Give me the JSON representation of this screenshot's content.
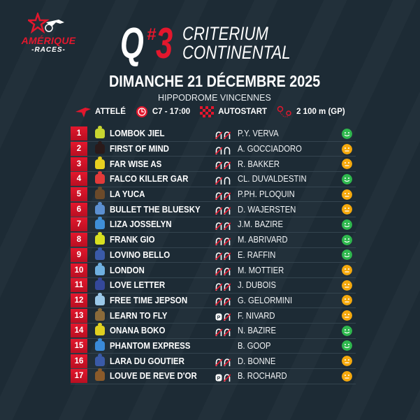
{
  "brand": {
    "line1": "AMÉRIQUE",
    "line2": "-RACES-",
    "accent": "#e3172d"
  },
  "race": {
    "q": "Q",
    "hash": "#",
    "number": "3",
    "name_line1": "CRITERIUM",
    "name_line2": "CONTINENTAL",
    "date": "DIMANCHE 21 DÉCEMBRE 2025",
    "venue": "HIPPODROME VINCENNES",
    "discipline": "ATTELÉ",
    "course": "C7 - 17:00",
    "start": "AUTOSTART",
    "distance": "2 100 m (GP)"
  },
  "mood_colors": {
    "good": "#2fb84e",
    "neutral": "#f5a90d"
  },
  "runners": [
    {
      "num": "1",
      "name": "LOMBOK JIEL",
      "shoes": [
        "x",
        "x"
      ],
      "driver": "P.Y. VERVA",
      "mood": "good",
      "silk": "#c8d630"
    },
    {
      "num": "2",
      "name": "FIRST OF MIND",
      "shoes": [
        "x",
        "o"
      ],
      "driver": "A. GOCCIADORO",
      "mood": "neutral",
      "silk": "#2a1a1a"
    },
    {
      "num": "3",
      "name": "FAR WISE AS",
      "shoes": [
        "x",
        "x"
      ],
      "driver": "R. BAKKER",
      "mood": "neutral",
      "silk": "#e8d020"
    },
    {
      "num": "4",
      "name": "FALCO KILLER GAR",
      "shoes": [
        "x",
        "o"
      ],
      "driver": "CL. DUVALDESTIN",
      "mood": "good",
      "silk": "#e33a3a"
    },
    {
      "num": "5",
      "name": "LA YUCA",
      "shoes": [
        "x",
        "x"
      ],
      "driver": "P.PH. PLOQUIN",
      "mood": "neutral",
      "silk": "#6b4a2a"
    },
    {
      "num": "6",
      "name": "BULLET THE BLUESKY",
      "shoes": [
        "x",
        "x"
      ],
      "driver": "D. WAJERSTEN",
      "mood": "neutral",
      "silk": "#5b8fd0"
    },
    {
      "num": "7",
      "name": "LIZA JOSSELYN",
      "shoes": [
        "x",
        "x"
      ],
      "driver": "J.M. BAZIRE",
      "mood": "good",
      "silk": "#3f8fd8"
    },
    {
      "num": "8",
      "name": "FRANK GIO",
      "shoes": [
        "x",
        "x"
      ],
      "driver": "M. ABRIVARD",
      "mood": "good",
      "silk": "#d8e020"
    },
    {
      "num": "9",
      "name": "LOVINO BELLO",
      "shoes": [
        "x",
        "x"
      ],
      "driver": "E. RAFFIN",
      "mood": "good",
      "silk": "#3a5aa8"
    },
    {
      "num": "10",
      "name": "LONDON",
      "shoes": [
        "x",
        "x"
      ],
      "driver": "M. MOTTIER",
      "mood": "neutral",
      "silk": "#6fb0e0"
    },
    {
      "num": "11",
      "name": "LOVE LETTER",
      "shoes": [
        "x",
        "x"
      ],
      "driver": "J. DUBOIS",
      "mood": "neutral",
      "silk": "#34489a"
    },
    {
      "num": "12",
      "name": "FREE TIME JEPSON",
      "shoes": [
        "x",
        "x"
      ],
      "driver": "G. GELORMINI",
      "mood": "neutral",
      "silk": "#9ac8e8"
    },
    {
      "num": "13",
      "name": "LEARN TO FLY",
      "shoes": [
        "p",
        "x"
      ],
      "driver": "F. NIVARD",
      "mood": "neutral",
      "silk": "#8a6a3a"
    },
    {
      "num": "14",
      "name": "ONANA BOKO",
      "shoes": [
        "x",
        "x"
      ],
      "driver": "N. BAZIRE",
      "mood": "good",
      "silk": "#e0d020"
    },
    {
      "num": "15",
      "name": "PHANTOM EXPRESS",
      "shoes": [],
      "driver": "B. GOOP",
      "mood": "good",
      "silk": "#3a8ad8"
    },
    {
      "num": "16",
      "name": "LARA DU GOUTIER",
      "shoes": [
        "x",
        "x"
      ],
      "driver": "D. BONNE",
      "mood": "neutral",
      "silk": "#3a5aa8"
    },
    {
      "num": "17",
      "name": "LOUVE DE REVE D'OR",
      "shoes": [
        "p",
        "x"
      ],
      "driver": "B. ROCHARD",
      "mood": "neutral",
      "silk": "#8a5a2a"
    }
  ]
}
